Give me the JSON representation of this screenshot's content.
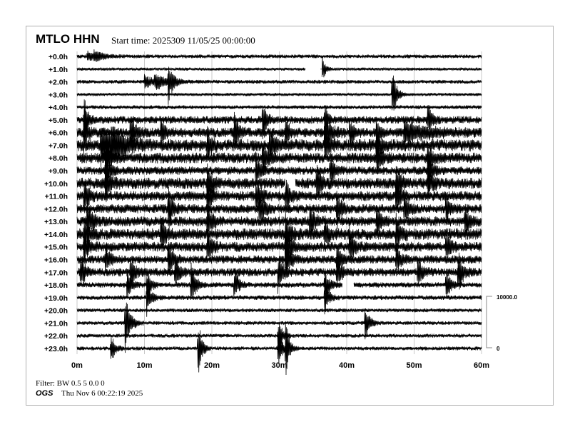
{
  "header": {
    "station": "MTLO HHN",
    "start_time": "Start time: 2025309 11/05/25 00:00:00"
  },
  "footer": {
    "filter": "Filter: BW 0.5 5 0.0 0",
    "agency": "OGS",
    "printed": "Thu Nov  6 00:22:19 2025"
  },
  "chart_data": {
    "type": "line",
    "title": "MTLO HHN",
    "row_labels": [
      "+0.0h",
      "+1.0h",
      "+2.0h",
      "+3.0h",
      "+4.0h",
      "+5.0h",
      "+6.0h",
      "+7.0h",
      "+8.0h",
      "+9.0h",
      "+10.0h",
      "+11.0h",
      "+12.0h",
      "+13.0h",
      "+14.0h",
      "+15.0h",
      "+16.0h",
      "+17.0h",
      "+18.0h",
      "+19.0h",
      "+20.0h",
      "+21.0h",
      "+22.0h",
      "+23.0h"
    ],
    "x_ticks": [
      "0m",
      "10m",
      "20m",
      "30m",
      "40m",
      "50m",
      "60m"
    ],
    "xlim": [
      0,
      60
    ],
    "grid": true,
    "scale_bar": {
      "top_label": "10000.0",
      "bottom_label": "0",
      "counts": 10000
    },
    "noise_counts_by_hour": [
      250,
      200,
      250,
      200,
      250,
      500,
      650,
      800,
      700,
      550,
      750,
      650,
      600,
      650,
      750,
      650,
      550,
      550,
      350,
      300,
      250,
      250,
      250,
      250
    ],
    "gaps": [
      [
        1,
        33.9,
        36.3
      ],
      [
        10,
        30.9,
        32.4
      ],
      [
        18,
        39.4,
        41.0
      ]
    ],
    "events": [
      [
        0,
        1.5,
        900,
        1.5
      ],
      [
        0,
        2.5,
        900,
        1.2
      ],
      [
        1,
        36.2,
        4000,
        0.4
      ],
      [
        2,
        10.0,
        1200,
        1.5
      ],
      [
        2,
        11.5,
        1400,
        1.5
      ],
      [
        2,
        13.5,
        4500,
        0.6
      ],
      [
        3,
        46.7,
        6000,
        0.6
      ],
      [
        5,
        1.0,
        5000,
        0.5
      ],
      [
        5,
        27.5,
        4000,
        0.5
      ],
      [
        5,
        36.7,
        3500,
        0.5
      ],
      [
        5,
        52.0,
        3500,
        0.5
      ],
      [
        6,
        1.0,
        4000,
        0.5
      ],
      [
        6,
        7.9,
        4500,
        0.6
      ],
      [
        6,
        12.4,
        3000,
        0.5
      ],
      [
        6,
        23.3,
        4500,
        0.5
      ],
      [
        6,
        30.9,
        4000,
        0.5
      ],
      [
        6,
        36.7,
        3500,
        0.8
      ],
      [
        6,
        40.4,
        3500,
        0.5
      ],
      [
        6,
        44.4,
        3000,
        0.5
      ],
      [
        6,
        48.5,
        2000,
        3.0
      ],
      [
        7,
        3.5,
        3500,
        2.0
      ],
      [
        7,
        5.0,
        3000,
        1.5
      ],
      [
        7,
        19.3,
        3000,
        0.6
      ],
      [
        7,
        28.5,
        3500,
        0.6
      ],
      [
        7,
        36.7,
        3000,
        0.6
      ],
      [
        7,
        44.4,
        3500,
        0.6
      ],
      [
        8,
        4.2,
        3000,
        0.6
      ],
      [
        8,
        27.5,
        4000,
        0.6
      ],
      [
        8,
        44.4,
        3500,
        0.6
      ],
      [
        8,
        52.0,
        3000,
        0.6
      ],
      [
        9,
        4.2,
        3500,
        0.6
      ],
      [
        9,
        26.5,
        3500,
        0.6
      ],
      [
        9,
        37.5,
        3000,
        0.6
      ],
      [
        9,
        52.0,
        3500,
        0.6
      ],
      [
        10,
        4.2,
        4000,
        0.6
      ],
      [
        10,
        19.3,
        4000,
        0.6
      ],
      [
        10,
        35.5,
        3500,
        0.6
      ],
      [
        10,
        47.3,
        4000,
        0.6
      ],
      [
        10,
        52.0,
        3000,
        0.6
      ],
      [
        11,
        1.0,
        3500,
        0.6
      ],
      [
        11,
        19.3,
        3500,
        0.6
      ],
      [
        11,
        26.5,
        4000,
        0.6
      ],
      [
        11,
        30.9,
        3500,
        0.6
      ],
      [
        11,
        47.3,
        3500,
        0.6
      ],
      [
        12,
        13.5,
        4500,
        0.6
      ],
      [
        12,
        27.0,
        4500,
        0.6
      ],
      [
        12,
        38.5,
        4000,
        0.6
      ],
      [
        12,
        48.5,
        3500,
        0.6
      ],
      [
        12,
        54.7,
        3000,
        0.6
      ],
      [
        13,
        1.5,
        4000,
        0.6
      ],
      [
        13,
        19.3,
        4000,
        0.6
      ],
      [
        13,
        34.5,
        3500,
        0.6
      ],
      [
        13,
        44.4,
        3500,
        0.6
      ],
      [
        13,
        57.5,
        3000,
        0.6
      ],
      [
        14,
        1.0,
        4000,
        0.6
      ],
      [
        14,
        12.4,
        3500,
        0.6
      ],
      [
        14,
        30.9,
        4500,
        0.6
      ],
      [
        14,
        36.7,
        3500,
        0.6
      ],
      [
        14,
        47.3,
        3500,
        0.6
      ],
      [
        15,
        1.0,
        3500,
        0.6
      ],
      [
        15,
        19.3,
        3500,
        0.6
      ],
      [
        15,
        30.9,
        4500,
        0.6
      ],
      [
        15,
        40.4,
        3500,
        0.6
      ],
      [
        15,
        54.7,
        3500,
        0.6
      ],
      [
        16,
        4.2,
        3500,
        0.6
      ],
      [
        16,
        13.5,
        3500,
        0.6
      ],
      [
        16,
        30.9,
        4500,
        0.6
      ],
      [
        16,
        38.5,
        3500,
        0.6
      ],
      [
        16,
        47.3,
        3000,
        0.6
      ],
      [
        17,
        0.5,
        3500,
        0.6
      ],
      [
        17,
        7.9,
        3500,
        0.6
      ],
      [
        17,
        14.5,
        3500,
        0.6
      ],
      [
        17,
        29.8,
        4000,
        0.6
      ],
      [
        17,
        38.5,
        3500,
        0.6
      ],
      [
        17,
        50.5,
        3000,
        0.6
      ],
      [
        17,
        56.5,
        4500,
        0.6
      ],
      [
        18,
        7.4,
        3000,
        0.6
      ],
      [
        18,
        10.3,
        3000,
        0.6
      ],
      [
        18,
        16.9,
        4500,
        0.6
      ],
      [
        18,
        23.3,
        3500,
        0.6
      ],
      [
        18,
        36.7,
        3500,
        0.6
      ],
      [
        18,
        54.7,
        3500,
        0.6
      ],
      [
        19,
        10.3,
        4000,
        0.6
      ],
      [
        19,
        36.7,
        3500,
        0.6
      ],
      [
        21,
        7.1,
        6000,
        0.7
      ],
      [
        21,
        42.7,
        4000,
        0.6
      ],
      [
        22,
        29.8,
        3500,
        0.6
      ],
      [
        23,
        5.0,
        3500,
        0.5
      ],
      [
        23,
        17.9,
        7000,
        0.5
      ],
      [
        23,
        29.8,
        4500,
        0.5
      ],
      [
        23,
        30.9,
        6000,
        0.5
      ]
    ]
  }
}
